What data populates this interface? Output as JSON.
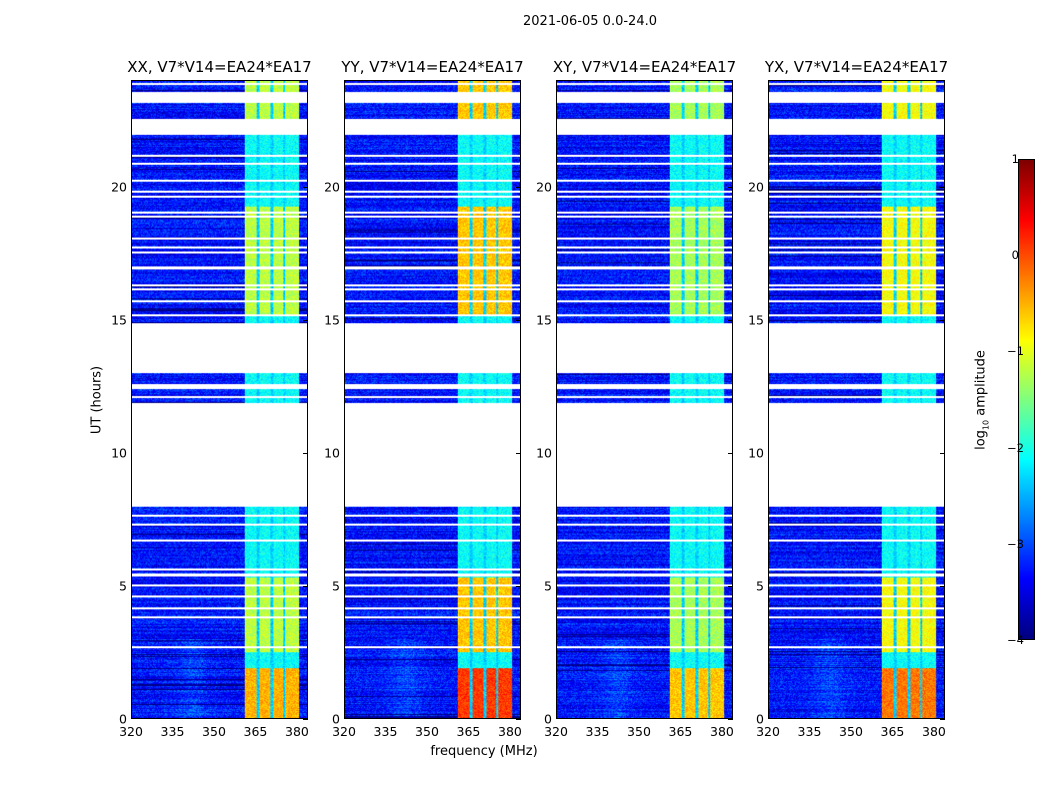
{
  "chart_data": {
    "type": "heatmap",
    "title": "2021-06-05 0.0-24.0",
    "xlabel": "frequency (MHz)",
    "ylabel": "UT (hours)",
    "xlim": [
      320,
      384
    ],
    "ylim": [
      0,
      24
    ],
    "x_ticks": [
      "320",
      "335",
      "350",
      "365",
      "380"
    ],
    "y_ticks": [
      "0",
      "5",
      "10",
      "15",
      "20"
    ],
    "panels": [
      {
        "title": "XX, V7*V14=EA24*EA17",
        "rfi_level": -1.2
      },
      {
        "title": "YY, V7*V14=EA24*EA17",
        "rfi_level": -0.6
      },
      {
        "title": "XY, V7*V14=EA24*EA17",
        "rfi_level": -1.3
      },
      {
        "title": "YX, V7*V14=EA24*EA17",
        "rfi_level": -0.9
      }
    ],
    "flagged_hours": [
      [
        8.0,
        11.9
      ],
      [
        12.4,
        12.6
      ],
      [
        13.0,
        14.9
      ],
      [
        22.0,
        22.6
      ],
      [
        23.2,
        23.6
      ]
    ],
    "rfi_band_mhz": [
      361,
      381
    ],
    "colorbar": {
      "label": "log10 amplitude",
      "range": [
        -4,
        1
      ],
      "ticks": [
        "1",
        "0",
        "−1",
        "−2",
        "−3",
        "−4"
      ]
    }
  }
}
